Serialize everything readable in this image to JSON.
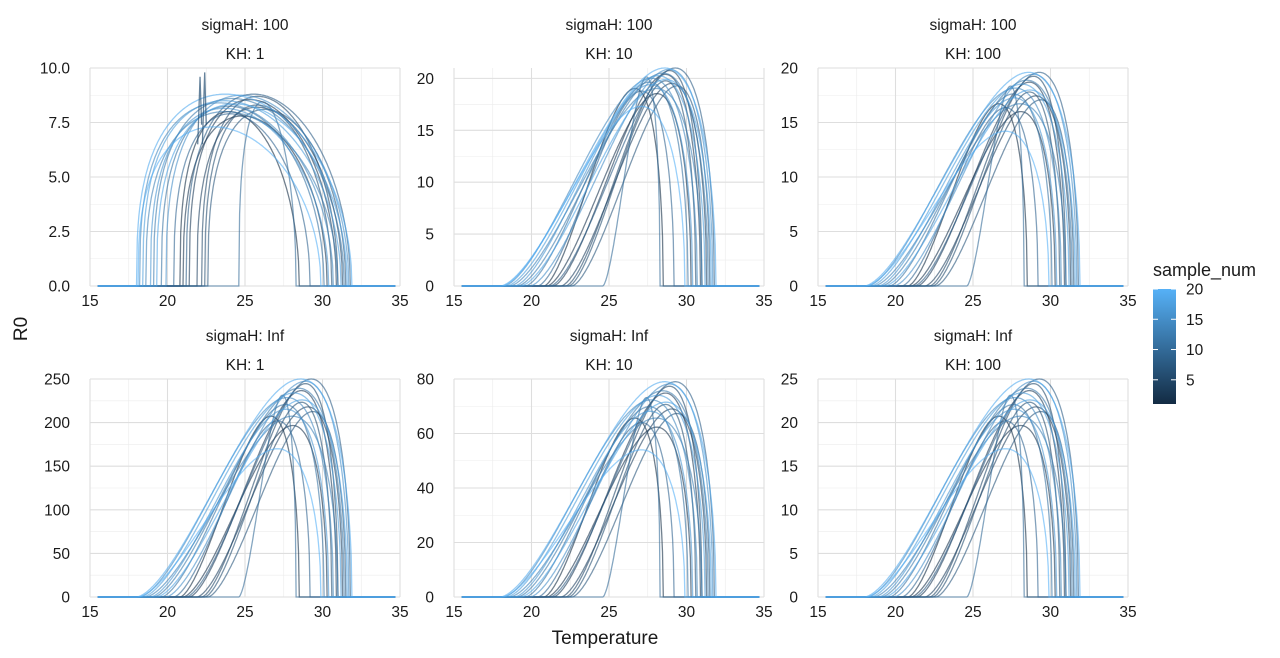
{
  "chart_data": {
    "type": "line",
    "xlabel": "Temperature",
    "ylabel": "R0",
    "xlim": [
      15,
      35
    ],
    "x_ticks": [
      15,
      20,
      25,
      30,
      35
    ],
    "grid": true,
    "legend": {
      "title": "sample_num",
      "position": "right",
      "type": "colorbar",
      "low_color": "#132B43",
      "high_color": "#56B1F7",
      "range": [
        1,
        20
      ],
      "ticks": [
        5,
        10,
        15,
        20
      ]
    },
    "facets": [
      {
        "strip": [
          "sigmaH: 100",
          "KH: 1"
        ],
        "ylim": [
          0,
          10
        ],
        "y_ticks": [
          "0.0",
          "2.5",
          "5.0",
          "7.5",
          "10.0"
        ],
        "peak_range": [
          7.3,
          8.8
        ],
        "peak_temp": 27.3,
        "spikes": [
          {
            "x": 22.4,
            "y": 9.8
          },
          {
            "x": 22.1,
            "y": 9.6
          }
        ]
      },
      {
        "strip": [
          "sigmaH: 100",
          "KH: 10"
        ],
        "ylim": [
          0,
          21
        ],
        "y_ticks": [
          "0",
          "5",
          "10",
          "15",
          "20"
        ],
        "peak_range": [
          17.3,
          21.0
        ],
        "peak_temp": 27.5
      },
      {
        "strip": [
          "sigmaH: 100",
          "KH: 100"
        ],
        "ylim": [
          0,
          20
        ],
        "y_ticks": [
          "0",
          "5",
          "10",
          "15",
          "20"
        ],
        "peak_range": [
          14.2,
          19.6
        ],
        "peak_temp": 27.8
      },
      {
        "strip": [
          "sigmaH: Inf",
          "KH: 1"
        ],
        "ylim": [
          0,
          250
        ],
        "y_ticks": [
          "0",
          "50",
          "100",
          "150",
          "200",
          "250"
        ],
        "peak_range": [
          170,
          250
        ],
        "peak_temp": 27.8
      },
      {
        "strip": [
          "sigmaH: Inf",
          "KH: 10"
        ],
        "ylim": [
          0,
          80
        ],
        "y_ticks": [
          "0",
          "20",
          "40",
          "60",
          "80"
        ],
        "peak_range": [
          54,
          79
        ],
        "peak_temp": 27.8
      },
      {
        "strip": [
          "sigmaH: Inf",
          "KH: 100"
        ],
        "ylim": [
          0,
          25
        ],
        "y_ticks": [
          "0",
          "5",
          "10",
          "15",
          "20",
          "25"
        ],
        "peak_range": [
          17,
          25
        ],
        "peak_temp": 27.8
      }
    ],
    "series": [
      {
        "sample": 1,
        "tmin": 20.8,
        "tmax": 28.5,
        "rel_peak": 0.84
      },
      {
        "sample": 2,
        "tmin": 21.0,
        "tmax": 30.3,
        "rel_peak": 0.8
      },
      {
        "sample": 3,
        "tmin": 21.4,
        "tmax": 30.9,
        "rel_peak": 0.95
      },
      {
        "sample": 4,
        "tmin": 21.9,
        "tmax": 31.3,
        "rel_peak": 0.88
      },
      {
        "sample": 5,
        "tmin": 22.2,
        "tmax": 31.0,
        "rel_peak": 0.98
      },
      {
        "sample": 6,
        "tmin": 22.4,
        "tmax": 30.6,
        "rel_peak": 0.9
      },
      {
        "sample": 7,
        "tmin": 22.6,
        "tmax": 31.5,
        "rel_peak": 0.86
      },
      {
        "sample": 8,
        "tmin": 21.2,
        "tmax": 31.8,
        "rel_peak": 1.0
      },
      {
        "sample": 9,
        "tmin": 20.4,
        "tmax": 29.2,
        "rel_peak": 0.82
      },
      {
        "sample": 10,
        "tmin": 24.6,
        "tmax": 28.3,
        "rel_peak": 0.93
      },
      {
        "sample": 11,
        "tmin": 19.6,
        "tmax": 30.1,
        "rel_peak": 0.89
      },
      {
        "sample": 12,
        "tmin": 19.1,
        "tmax": 31.4,
        "rel_peak": 0.96
      },
      {
        "sample": 13,
        "tmin": 18.6,
        "tmax": 31.0,
        "rel_peak": 0.84
      },
      {
        "sample": 14,
        "tmin": 18.2,
        "tmax": 30.7,
        "rel_peak": 0.92
      },
      {
        "sample": 15,
        "tmin": 19.9,
        "tmax": 31.7,
        "rel_peak": 0.99
      },
      {
        "sample": 16,
        "tmin": 18.9,
        "tmax": 30.4,
        "rel_peak": 0.87
      },
      {
        "sample": 17,
        "tmin": 18.4,
        "tmax": 31.2,
        "rel_peak": 0.94
      },
      {
        "sample": 18,
        "tmin": 19.3,
        "tmax": 31.6,
        "rel_peak": 0.91
      },
      {
        "sample": 19,
        "tmin": 18.0,
        "tmax": 31.9,
        "rel_peak": 1.0
      },
      {
        "sample": 20,
        "tmin": 18.1,
        "tmax": 29.9,
        "rel_peak": 0.7
      }
    ],
    "x_range_drawn": [
      15.5,
      34.7
    ]
  }
}
